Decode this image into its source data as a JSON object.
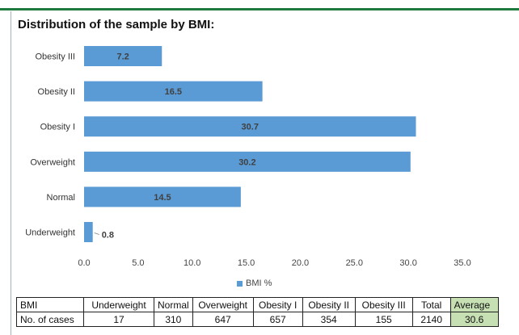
{
  "title": "Distribution of the sample by BMI:",
  "legend_label": "BMI %",
  "colors": {
    "bar": "#5b9bd5",
    "header_rule": "#1e7a3e",
    "average_cell": "#c6e0b4"
  },
  "chart_data": {
    "type": "bar",
    "orientation": "horizontal",
    "categories": [
      "Underweight",
      "Normal",
      "Overweight",
      "Obesity I",
      "Obesity II",
      "Obesity III"
    ],
    "series": [
      {
        "name": "BMI %",
        "values": [
          0.8,
          14.5,
          30.2,
          30.7,
          16.5,
          7.2
        ]
      }
    ],
    "xlim": [
      0,
      35
    ],
    "xticks": [
      "0.0",
      "5.0",
      "10.0",
      "15.0",
      "20.0",
      "25.0",
      "30.0",
      "35.0"
    ],
    "grid": false,
    "legend": "bottom"
  },
  "table": {
    "header": [
      "BMI",
      "Underweight",
      "Normal",
      "Overweight",
      "Obesity I",
      "Obesity II",
      "Obesity III",
      "Total",
      "Average"
    ],
    "rows": [
      [
        "No. of cases",
        "17",
        "310",
        "647",
        "657",
        "354",
        "155",
        "2140",
        "30.6"
      ]
    ]
  }
}
